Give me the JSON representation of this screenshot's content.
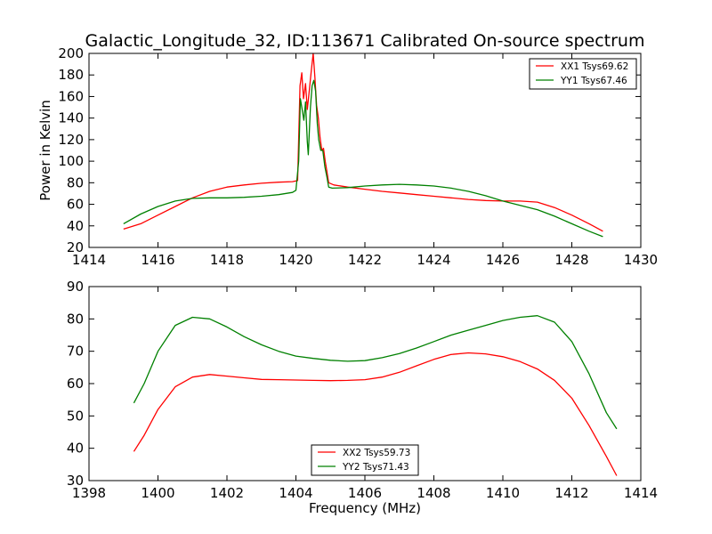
{
  "chart_data": [
    {
      "type": "line",
      "title": "Galactic_Longitude_32, ID:113671 Calibrated On-source spectrum",
      "xlabel": "",
      "ylabel": "Power in Kelvin",
      "xlim": [
        1414,
        1430
      ],
      "ylim": [
        20,
        200
      ],
      "xticks": [
        "1414",
        "1416",
        "1418",
        "1420",
        "1422",
        "1424",
        "1426",
        "1428",
        "1430"
      ],
      "yticks": [
        "20",
        "40",
        "60",
        "80",
        "100",
        "120",
        "140",
        "160",
        "180",
        "200"
      ],
      "legend_position": "top-right",
      "grid": false,
      "series": [
        {
          "name": "XX1 Tsys69.62",
          "color": "#ff0000",
          "points": [
            [
              1415.0,
              37
            ],
            [
              1415.5,
              42
            ],
            [
              1416.0,
              50
            ],
            [
              1416.5,
              58
            ],
            [
              1417.0,
              66
            ],
            [
              1417.5,
              72
            ],
            [
              1418.0,
              76
            ],
            [
              1418.5,
              78
            ],
            [
              1419.0,
              79.5
            ],
            [
              1419.5,
              80.5
            ],
            [
              1419.9,
              81
            ],
            [
              1420.05,
              82
            ],
            [
              1420.12,
              170
            ],
            [
              1420.17,
              182
            ],
            [
              1420.22,
              158
            ],
            [
              1420.28,
              172
            ],
            [
              1420.33,
              148
            ],
            [
              1420.38,
              163
            ],
            [
              1420.45,
              185
            ],
            [
              1420.5,
              200
            ],
            [
              1420.55,
              178
            ],
            [
              1420.6,
              152
            ],
            [
              1420.65,
              140
            ],
            [
              1420.7,
              122
            ],
            [
              1420.75,
              110
            ],
            [
              1420.8,
              112
            ],
            [
              1420.85,
              100
            ],
            [
              1420.9,
              90
            ],
            [
              1420.95,
              80
            ],
            [
              1421.1,
              78
            ],
            [
              1421.5,
              76
            ],
            [
              1422.0,
              74
            ],
            [
              1422.5,
              72
            ],
            [
              1423.0,
              70.5
            ],
            [
              1423.5,
              69
            ],
            [
              1424.0,
              67.5
            ],
            [
              1424.5,
              66
            ],
            [
              1425.0,
              64.5
            ],
            [
              1425.5,
              63.5
            ],
            [
              1426.0,
              63
            ],
            [
              1426.5,
              63
            ],
            [
              1427.0,
              62
            ],
            [
              1427.5,
              57
            ],
            [
              1428.0,
              50
            ],
            [
              1428.5,
              42
            ],
            [
              1428.9,
              35
            ]
          ]
        },
        {
          "name": "YY1 Tsys67.46",
          "color": "#008000",
          "points": [
            [
              1415.0,
              42
            ],
            [
              1415.5,
              51
            ],
            [
              1416.0,
              58
            ],
            [
              1416.5,
              63
            ],
            [
              1417.0,
              65.5
            ],
            [
              1417.5,
              66
            ],
            [
              1418.0,
              66
            ],
            [
              1418.5,
              66.5
            ],
            [
              1419.0,
              67.5
            ],
            [
              1419.5,
              69
            ],
            [
              1419.9,
              71
            ],
            [
              1420.0,
              73
            ],
            [
              1420.08,
              100
            ],
            [
              1420.13,
              158
            ],
            [
              1420.18,
              148
            ],
            [
              1420.23,
              138
            ],
            [
              1420.28,
              155
            ],
            [
              1420.33,
              118
            ],
            [
              1420.36,
              106
            ],
            [
              1420.42,
              150
            ],
            [
              1420.47,
              170
            ],
            [
              1420.52,
              175
            ],
            [
              1420.57,
              165
            ],
            [
              1420.62,
              135
            ],
            [
              1420.66,
              120
            ],
            [
              1420.72,
              110
            ],
            [
              1420.78,
              110
            ],
            [
              1420.84,
              95
            ],
            [
              1420.9,
              85
            ],
            [
              1420.95,
              76
            ],
            [
              1421.05,
              75
            ],
            [
              1421.5,
              75.5
            ],
            [
              1422.0,
              77
            ],
            [
              1422.5,
              78
            ],
            [
              1423.0,
              78.5
            ],
            [
              1423.5,
              78
            ],
            [
              1424.0,
              77
            ],
            [
              1424.5,
              75
            ],
            [
              1425.0,
              72
            ],
            [
              1425.5,
              68
            ],
            [
              1426.0,
              63
            ],
            [
              1426.5,
              59
            ],
            [
              1427.0,
              55
            ],
            [
              1427.5,
              49
            ],
            [
              1428.0,
              42
            ],
            [
              1428.5,
              35
            ],
            [
              1428.9,
              30
            ]
          ]
        }
      ]
    },
    {
      "type": "line",
      "title": "",
      "xlabel": "Frequency (MHz)",
      "ylabel": "",
      "xlim": [
        1398,
        1414
      ],
      "ylim": [
        30,
        90
      ],
      "xticks": [
        "1398",
        "1400",
        "1402",
        "1404",
        "1406",
        "1408",
        "1410",
        "1412",
        "1414"
      ],
      "yticks": [
        "30",
        "40",
        "50",
        "60",
        "70",
        "80",
        "90"
      ],
      "legend_position": "bottom-center",
      "grid": false,
      "series": [
        {
          "name": "XX2 Tsys59.73",
          "color": "#ff0000",
          "points": [
            [
              1399.3,
              39
            ],
            [
              1399.6,
              44
            ],
            [
              1400.0,
              52
            ],
            [
              1400.5,
              59
            ],
            [
              1401.0,
              62
            ],
            [
              1401.5,
              62.8
            ],
            [
              1402.0,
              62.3
            ],
            [
              1402.5,
              61.8
            ],
            [
              1403.0,
              61.3
            ],
            [
              1403.5,
              61.2
            ],
            [
              1404.0,
              61.1
            ],
            [
              1404.5,
              61.0
            ],
            [
              1405.0,
              60.9
            ],
            [
              1405.5,
              61.0
            ],
            [
              1406.0,
              61.2
            ],
            [
              1406.5,
              62.0
            ],
            [
              1407.0,
              63.5
            ],
            [
              1407.5,
              65.5
            ],
            [
              1408.0,
              67.5
            ],
            [
              1408.5,
              69.0
            ],
            [
              1409.0,
              69.5
            ],
            [
              1409.5,
              69.2
            ],
            [
              1410.0,
              68.3
            ],
            [
              1410.5,
              66.8
            ],
            [
              1411.0,
              64.5
            ],
            [
              1411.5,
              61.0
            ],
            [
              1412.0,
              55.5
            ],
            [
              1412.5,
              47.0
            ],
            [
              1413.0,
              37.5
            ],
            [
              1413.3,
              31.5
            ]
          ]
        },
        {
          "name": "YY2 Tsys71.43",
          "color": "#008000",
          "points": [
            [
              1399.3,
              54
            ],
            [
              1399.6,
              60
            ],
            [
              1400.0,
              70
            ],
            [
              1400.5,
              78
            ],
            [
              1401.0,
              80.5
            ],
            [
              1401.5,
              80
            ],
            [
              1402.0,
              77.5
            ],
            [
              1402.5,
              74.5
            ],
            [
              1403.0,
              72
            ],
            [
              1403.5,
              70
            ],
            [
              1404.0,
              68.5
            ],
            [
              1404.5,
              67.8
            ],
            [
              1405.0,
              67.2
            ],
            [
              1405.5,
              66.9
            ],
            [
              1406.0,
              67.1
            ],
            [
              1406.5,
              68
            ],
            [
              1407.0,
              69.3
            ],
            [
              1407.5,
              71
            ],
            [
              1408.0,
              73
            ],
            [
              1408.5,
              75
            ],
            [
              1409.0,
              76.5
            ],
            [
              1409.5,
              78
            ],
            [
              1410.0,
              79.5
            ],
            [
              1410.5,
              80.5
            ],
            [
              1411.0,
              81
            ],
            [
              1411.5,
              79
            ],
            [
              1412.0,
              73
            ],
            [
              1412.5,
              63
            ],
            [
              1413.0,
              51
            ],
            [
              1413.3,
              46
            ]
          ]
        }
      ]
    }
  ]
}
